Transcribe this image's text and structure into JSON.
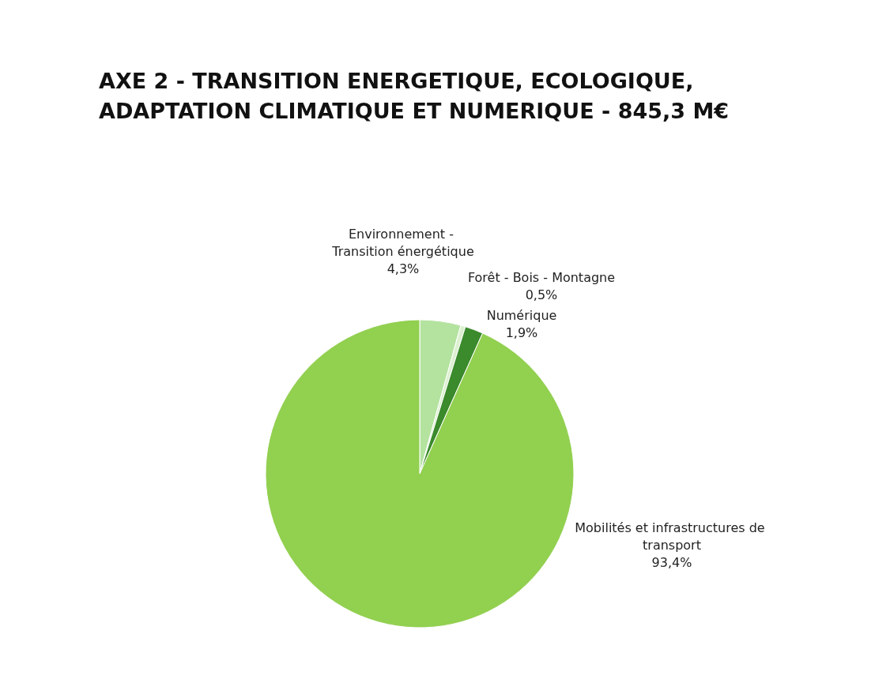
{
  "chart_data": {
    "type": "pie",
    "title": "AXE 2 - TRANSITION ENERGETIQUE, ECOLOGIQUE,\nADAPTATION CLIMATIQUE ET NUMERIQUE - 845,3 M€",
    "categories": [
      "Environnement - Transition énergétique",
      "Forêt - Bois - Montagne",
      "Numérique",
      "Mobilités et infrastructures de transport"
    ],
    "values": [
      4.3,
      0.5,
      1.9,
      93.4
    ],
    "value_labels": [
      "4,3%",
      "0,5%",
      "1,9%",
      "93,4%"
    ],
    "colors": [
      "#b4e3a0",
      "#dcf0d0",
      "#3b8a2c",
      "#92d050"
    ],
    "legend": false
  }
}
